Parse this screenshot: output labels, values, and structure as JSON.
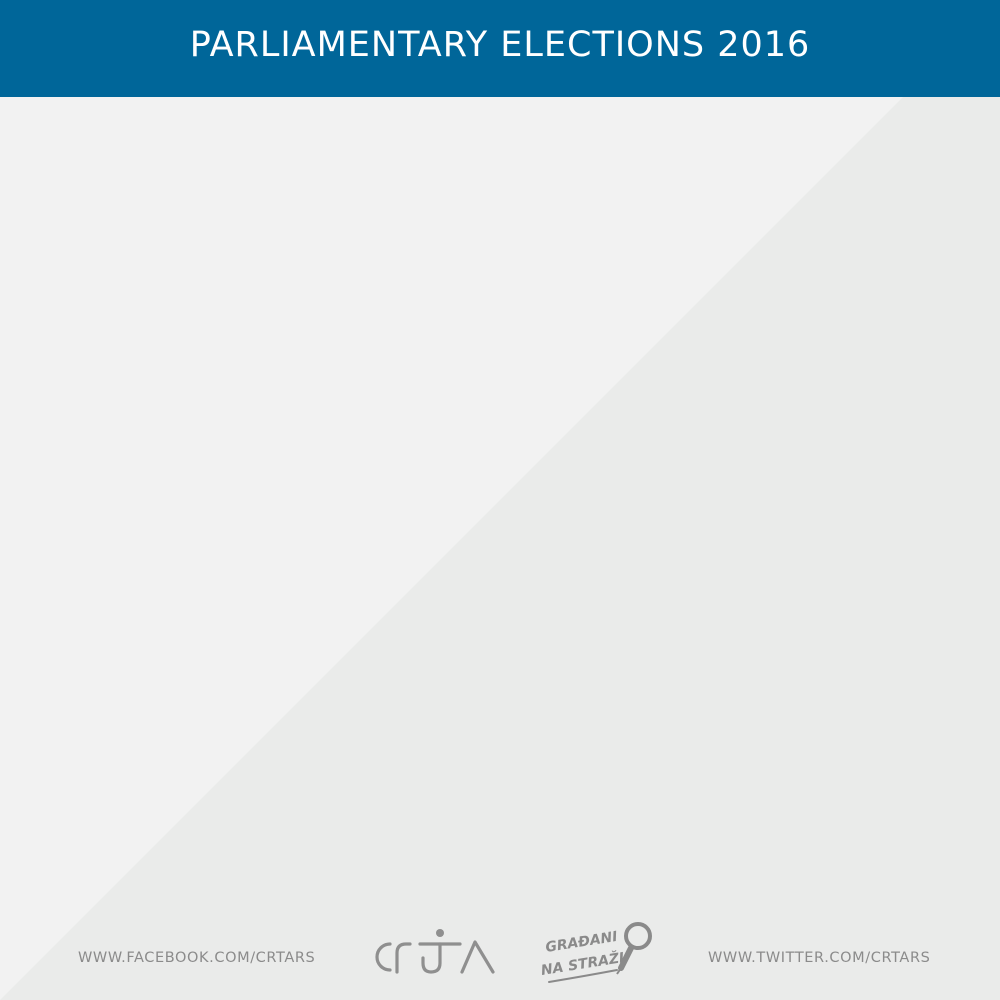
{
  "header": {
    "title": "PARLIAMENTARY ELECTIONS 2016"
  },
  "footer": {
    "facebook": "WWW.FACEBOOK.COM/CRTARS",
    "twitter": "WWW.TWITTER.COM/CRTARS",
    "logo_crta": "CRTA",
    "logo_gradjani_line1": "GRAĐANI",
    "logo_gradjani_line2": "NA STRAŽI"
  },
  "colors": {
    "header_bg": "#006699",
    "background_light": "#f2f2f2",
    "background_dark": "#eaebea",
    "footer_text": "#8b8b8b"
  }
}
